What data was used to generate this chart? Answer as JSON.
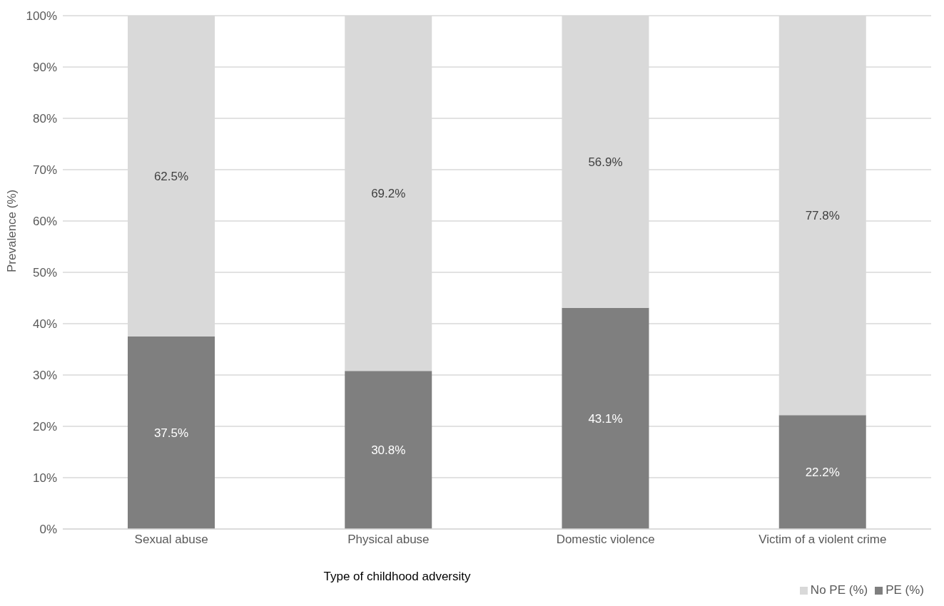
{
  "chart_data": {
    "type": "bar",
    "stacked": true,
    "xlabel": "Type of childhood adversity",
    "ylabel": "Prevalence (%)",
    "categories": [
      "Sexual abuse",
      "Physical abuse",
      "Domestic violence",
      "Victim of a violent crime"
    ],
    "series": [
      {
        "name": "PE (%)",
        "color": "#7f7f7f",
        "values": [
          37.5,
          30.8,
          43.1,
          22.2
        ],
        "value_labels": [
          "37.5%",
          "30.8%",
          "43.1%",
          "22.2%"
        ]
      },
      {
        "name": "No PE (%)",
        "color": "#d9d9d9",
        "values": [
          62.5,
          69.2,
          56.9,
          77.8
        ],
        "value_labels": [
          "62.5%",
          "69.2%",
          "56.9%",
          "77.8%"
        ]
      }
    ],
    "ylim": [
      0,
      100
    ],
    "yticks": [
      {
        "value": 0,
        "label": "0%"
      },
      {
        "value": 10,
        "label": "10%"
      },
      {
        "value": 20,
        "label": "20%"
      },
      {
        "value": 30,
        "label": "30%"
      },
      {
        "value": 40,
        "label": "40%"
      },
      {
        "value": 50,
        "label": "50%"
      },
      {
        "value": 60,
        "label": "60%"
      },
      {
        "value": 70,
        "label": "70%"
      },
      {
        "value": 80,
        "label": "80%"
      },
      {
        "value": 90,
        "label": "90%"
      },
      {
        "value": 100,
        "label": "100%"
      }
    ],
    "grid": "y",
    "legend": "bottom right"
  }
}
